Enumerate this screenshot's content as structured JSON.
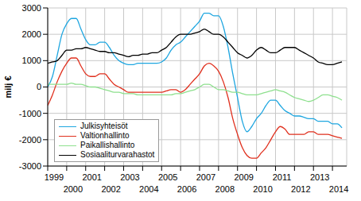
{
  "chart_data": {
    "type": "line",
    "y_label": "milj €",
    "x": [
      1999,
      1999.25,
      1999.5,
      1999.75,
      2000,
      2000.25,
      2000.5,
      2000.75,
      2001,
      2001.25,
      2001.5,
      2001.75,
      2002,
      2002.25,
      2002.5,
      2002.75,
      2003,
      2003.25,
      2003.5,
      2003.75,
      2004,
      2004.25,
      2004.5,
      2004.75,
      2005,
      2005.25,
      2005.5,
      2005.75,
      2006,
      2006.25,
      2006.5,
      2006.75,
      2007,
      2007.25,
      2007.5,
      2007.75,
      2008,
      2008.25,
      2008.5,
      2008.75,
      2009,
      2009.25,
      2009.5,
      2009.75,
      2010,
      2010.25,
      2010.5,
      2010.75,
      2011,
      2011.25,
      2011.5,
      2011.75,
      2012,
      2012.25,
      2012.5,
      2012.75,
      2013,
      2013.25,
      2013.5,
      2013.75,
      2014,
      2014.25,
      2014.5
    ],
    "series": [
      {
        "name": "Julkisyhteisöt",
        "color": "#1ea6e0",
        "values": [
          0,
          400,
          1200,
          2000,
          2400,
          2600,
          2600,
          2200,
          1800,
          1600,
          1600,
          1700,
          1700,
          1500,
          1200,
          1000,
          900,
          850,
          850,
          900,
          900,
          900,
          900,
          900,
          950,
          1100,
          1400,
          1600,
          1700,
          1900,
          2100,
          2300,
          2500,
          2800,
          2800,
          2700,
          2700,
          2300,
          1500,
          500,
          -400,
          -1300,
          -1700,
          -1500,
          -1200,
          -1000,
          -700,
          -500,
          -500,
          -700,
          -900,
          -1000,
          -1100,
          -1100,
          -1150,
          -1200,
          -1200,
          -1300,
          -1300,
          -1300,
          -1400,
          -1400,
          -1550
        ]
      },
      {
        "name": "Valtionhallinto",
        "color": "#e0301e",
        "values": [
          -700,
          -300,
          200,
          600,
          900,
          1100,
          1100,
          800,
          500,
          400,
          400,
          500,
          500,
          300,
          100,
          0,
          -100,
          -200,
          -200,
          -200,
          -200,
          -200,
          -200,
          -200,
          -200,
          -150,
          -100,
          -100,
          -200,
          -100,
          100,
          300,
          500,
          800,
          900,
          800,
          600,
          200,
          -400,
          -1200,
          -1800,
          -2300,
          -2600,
          -2700,
          -2700,
          -2500,
          -2300,
          -2000,
          -1700,
          -1500,
          -1600,
          -1800,
          -1800,
          -1800,
          -1800,
          -1700,
          -1700,
          -1800,
          -1800,
          -1800,
          -1850,
          -1900,
          -1950
        ]
      },
      {
        "name": "Paikallishallinto",
        "color": "#8ee08e",
        "values": [
          100,
          100,
          100,
          100,
          100,
          150,
          100,
          100,
          50,
          0,
          0,
          -50,
          -100,
          -150,
          -200,
          -200,
          -250,
          -250,
          -250,
          -300,
          -300,
          -300,
          -300,
          -300,
          -300,
          -300,
          -300,
          -250,
          -250,
          -200,
          -150,
          -100,
          0,
          100,
          100,
          0,
          -100,
          -100,
          -150,
          -200,
          -200,
          -250,
          -300,
          -300,
          -300,
          -250,
          -200,
          -150,
          -100,
          -150,
          -200,
          -300,
          -400,
          -450,
          -500,
          -550,
          -500,
          -400,
          -300,
          -300,
          -350,
          -400,
          -500
        ]
      },
      {
        "name": "Sosiaaliturvarahastot",
        "color": "#000000",
        "values": [
          900,
          950,
          1000,
          1200,
          1400,
          1400,
          1450,
          1450,
          1500,
          1450,
          1400,
          1350,
          1350,
          1300,
          1300,
          1250,
          1200,
          1150,
          1200,
          1200,
          1250,
          1250,
          1300,
          1300,
          1400,
          1500,
          1700,
          1900,
          2000,
          2000,
          2000,
          2050,
          2100,
          2200,
          2100,
          2000,
          2000,
          1900,
          1700,
          1500,
          1300,
          1200,
          1100,
          1200,
          1400,
          1500,
          1400,
          1300,
          1300,
          1400,
          1500,
          1500,
          1500,
          1400,
          1300,
          1200,
          1100,
          950,
          900,
          850,
          850,
          900,
          950
        ]
      }
    ],
    "xlim": [
      1999,
      2014.75
    ],
    "xticks": [
      1999,
      2000,
      2001,
      2002,
      2003,
      2004,
      2005,
      2006,
      2007,
      2008,
      2009,
      2010,
      2011,
      2012,
      2013,
      2014
    ],
    "ylim": [
      -3000,
      3000
    ],
    "yticks": [
      -3000,
      -2000,
      -1000,
      0,
      1000,
      2000,
      3000
    ],
    "grid": true,
    "legend": "lower left"
  }
}
